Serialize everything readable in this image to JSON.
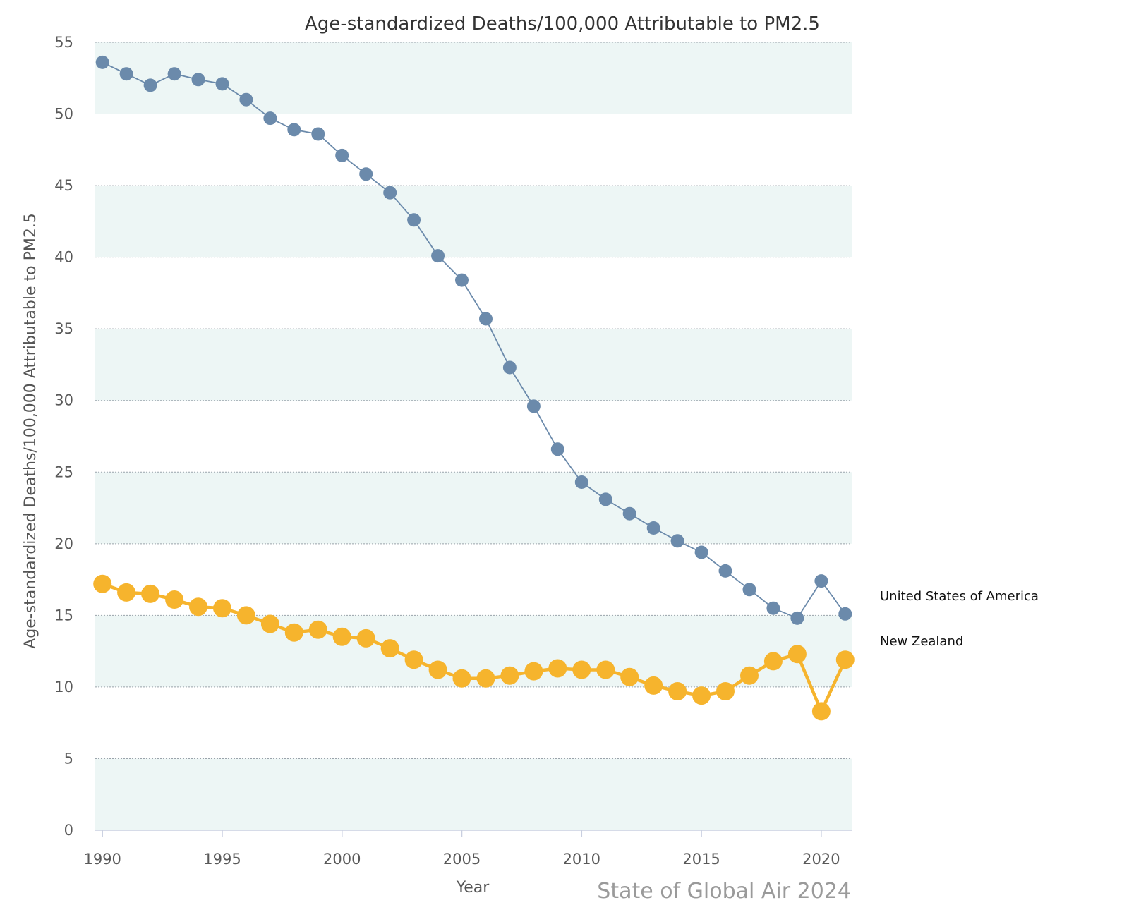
{
  "chart_data": {
    "type": "line",
    "title": "Age-standardized Deaths/100,000 Attributable to PM2.5",
    "xlabel": "Year",
    "ylabel": "Age-standardized Deaths/100,000 Attributable to PM2.5",
    "credit": "State of Global Air 2024",
    "x": [
      1990,
      1991,
      1992,
      1993,
      1994,
      1995,
      1996,
      1997,
      1998,
      1999,
      2000,
      2001,
      2002,
      2003,
      2004,
      2005,
      2006,
      2007,
      2008,
      2009,
      2010,
      2011,
      2012,
      2013,
      2014,
      2015,
      2016,
      2017,
      2018,
      2019,
      2020,
      2021
    ],
    "xlim": [
      1989.7,
      2021.3
    ],
    "ylim": [
      0,
      55
    ],
    "xticks": [
      1990,
      1995,
      2000,
      2005,
      2010,
      2015,
      2020
    ],
    "yticks": [
      0,
      5,
      10,
      15,
      20,
      25,
      30,
      35,
      40,
      45,
      50,
      55
    ],
    "grid": true,
    "legend_position": "right",
    "series": [
      {
        "name": "United States of America",
        "color": "#6b8aab",
        "values": [
          53.6,
          52.8,
          52.0,
          52.8,
          52.4,
          52.1,
          51.0,
          49.7,
          48.9,
          48.6,
          47.1,
          45.8,
          44.5,
          42.6,
          40.1,
          38.4,
          35.7,
          32.3,
          29.6,
          26.6,
          24.3,
          23.1,
          22.1,
          21.1,
          20.2,
          19.4,
          18.1,
          16.8,
          15.5,
          14.8,
          17.4,
          15.1
        ]
      },
      {
        "name": "New Zealand",
        "color": "#f6b42d",
        "values": [
          17.2,
          16.6,
          16.5,
          16.1,
          15.6,
          15.5,
          15.0,
          14.4,
          13.8,
          14.0,
          13.5,
          13.4,
          12.7,
          11.9,
          11.2,
          10.6,
          10.6,
          10.8,
          11.1,
          11.3,
          11.2,
          11.2,
          10.7,
          10.1,
          9.7,
          9.4,
          9.7,
          10.8,
          11.8,
          12.3,
          8.3,
          11.9
        ]
      }
    ]
  }
}
